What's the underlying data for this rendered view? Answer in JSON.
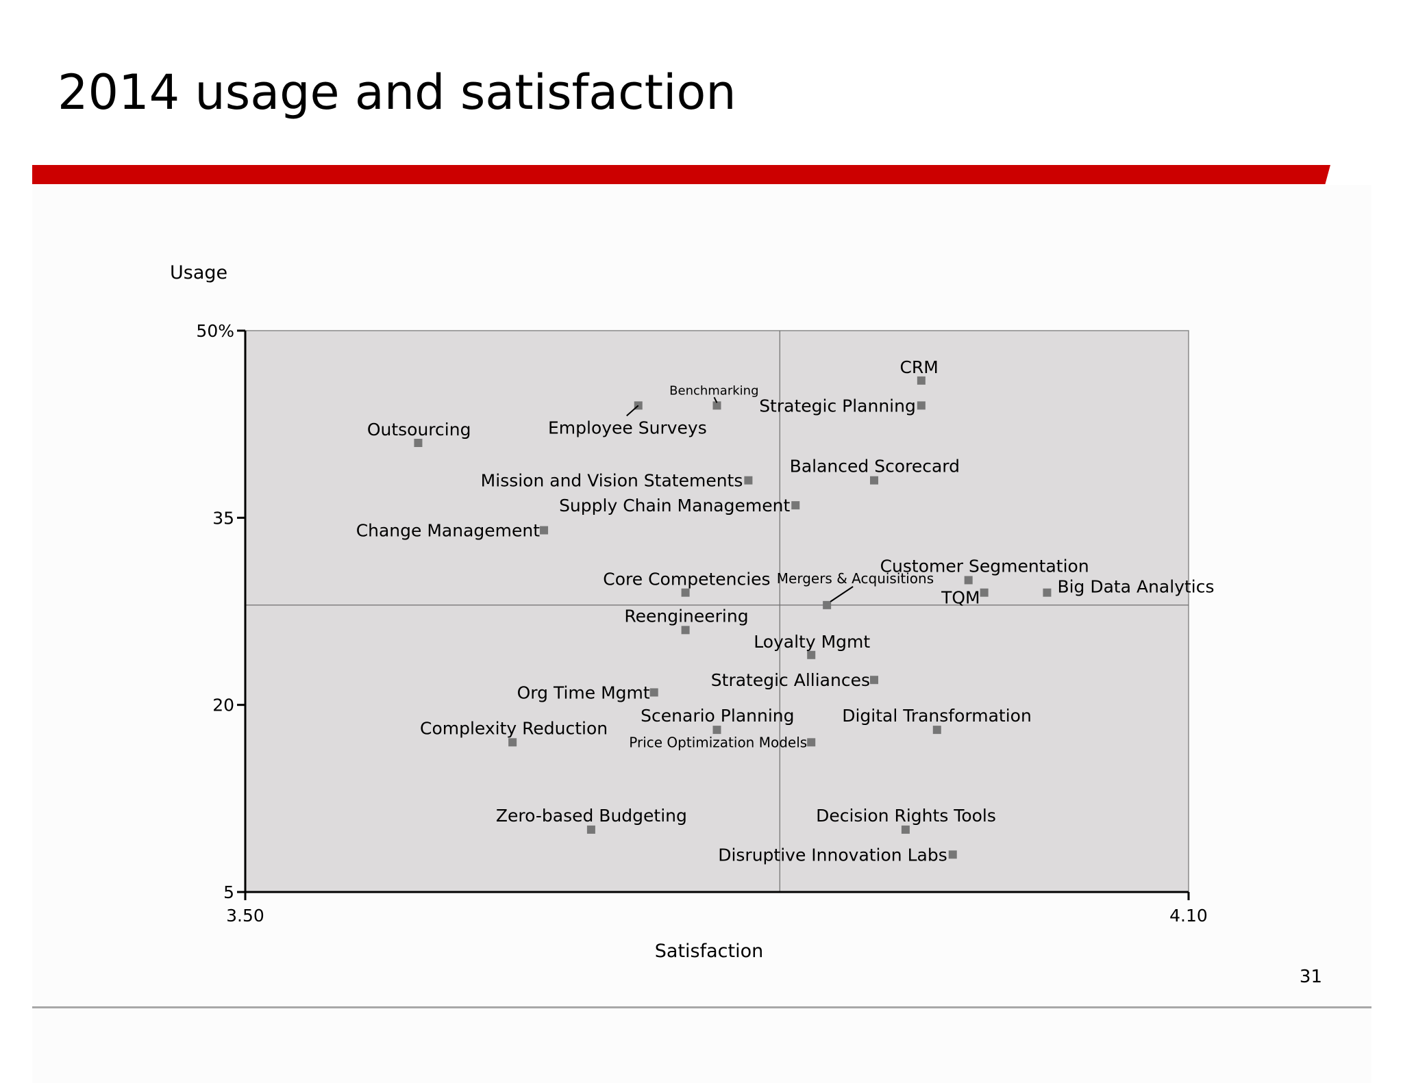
{
  "title": "2014 usage and satisfaction",
  "page_number": "31",
  "colors": {
    "accent_bar": "#cc0000",
    "plot_bg": "#dddbdc",
    "marker": "#767676"
  },
  "chart_data": {
    "type": "scatter",
    "xlabel": "Satisfaction",
    "ylabel": "Usage",
    "xlim": [
      3.5,
      4.1
    ],
    "ylim": [
      5,
      50
    ],
    "x_ticks": [
      {
        "value": 3.5,
        "label": "3.50"
      },
      {
        "value": 4.1,
        "label": "4.10"
      }
    ],
    "y_ticks": [
      {
        "value": 5,
        "label": "5"
      },
      {
        "value": 20,
        "label": "20"
      },
      {
        "value": 35,
        "label": "35"
      },
      {
        "value": 50,
        "label": "50%"
      }
    ],
    "quadrant_lines": {
      "x": 3.84,
      "y": 28
    },
    "grid": false,
    "points": [
      {
        "label": "CRM",
        "x": 3.93,
        "y": 46.0
      },
      {
        "label": "Benchmarking",
        "x": 3.8,
        "y": 44.0
      },
      {
        "label": "Employee Surveys",
        "x": 3.75,
        "y": 44.0
      },
      {
        "label": "Strategic Planning",
        "x": 3.93,
        "y": 44.0
      },
      {
        "label": "Outsourcing",
        "x": 3.61,
        "y": 41.0
      },
      {
        "label": "Balanced Scorecard",
        "x": 3.9,
        "y": 38.0
      },
      {
        "label": "Mission and Vision Statements",
        "x": 3.82,
        "y": 38.0
      },
      {
        "label": "Supply Chain Management",
        "x": 3.85,
        "y": 36.0
      },
      {
        "label": "Change Management",
        "x": 3.69,
        "y": 34.0
      },
      {
        "label": "Customer Segmentation",
        "x": 3.96,
        "y": 30.0
      },
      {
        "label": "Core Competencies",
        "x": 3.78,
        "y": 29.0
      },
      {
        "label": "TQM",
        "x": 3.97,
        "y": 29.0
      },
      {
        "label": "Big Data Analytics",
        "x": 4.01,
        "y": 29.0
      },
      {
        "label": "Mergers & Acquisitions",
        "x": 3.87,
        "y": 28.0
      },
      {
        "label": "Reengineering",
        "x": 3.78,
        "y": 26.0
      },
      {
        "label": "Loyalty Mgmt",
        "x": 3.86,
        "y": 24.0
      },
      {
        "label": "Strategic Alliances",
        "x": 3.9,
        "y": 22.0
      },
      {
        "label": "Org Time Mgmt",
        "x": 3.76,
        "y": 21.0
      },
      {
        "label": "Scenario Planning",
        "x": 3.8,
        "y": 18.0
      },
      {
        "label": "Digital Transformation",
        "x": 3.94,
        "y": 18.0
      },
      {
        "label": "Complexity Reduction",
        "x": 3.67,
        "y": 17.0
      },
      {
        "label": "Price Optimization Models",
        "x": 3.86,
        "y": 17.0
      },
      {
        "label": "Zero-based Budgeting",
        "x": 3.72,
        "y": 10.0
      },
      {
        "label": "Decision Rights Tools",
        "x": 3.92,
        "y": 10.0
      },
      {
        "label": "Disruptive Innovation Labs",
        "x": 3.95,
        "y": 8.0
      }
    ]
  }
}
